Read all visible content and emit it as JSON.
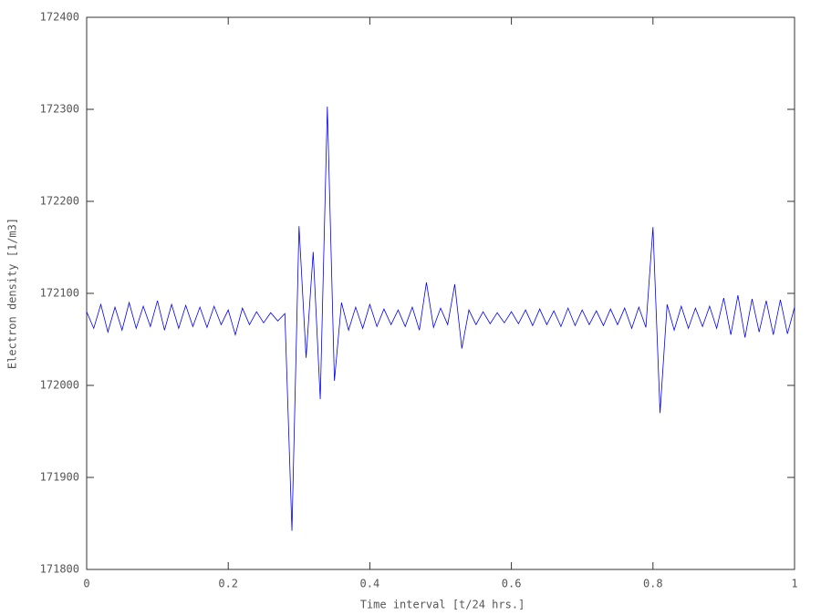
{
  "chart_data": {
    "type": "line",
    "xlabel": "Time interval [t/24 hrs.]",
    "ylabel": "Electron density [1/m3]",
    "xlim": [
      0,
      1
    ],
    "xticks": [
      0,
      0.2,
      0.4,
      0.6,
      0.8,
      1
    ],
    "ylim": [
      171800,
      172400
    ],
    "yticks": [
      171800,
      171900,
      172000,
      172100,
      172200,
      172300,
      172400
    ],
    "grid": false,
    "series": [
      {
        "color": "#0000ff",
        "x": [
          0,
          0.01,
          0.02,
          0.03,
          0.04,
          0.05,
          0.06,
          0.07,
          0.08,
          0.09,
          0.1,
          0.11,
          0.12,
          0.13,
          0.14,
          0.15,
          0.16,
          0.17,
          0.18,
          0.19,
          0.2,
          0.21,
          0.22,
          0.23,
          0.24,
          0.25,
          0.26,
          0.27,
          0.28,
          0.29,
          0.3,
          0.31,
          0.32,
          0.33,
          0.34,
          0.35,
          0.36,
          0.37,
          0.38,
          0.39,
          0.4,
          0.41,
          0.42,
          0.43,
          0.44,
          0.45,
          0.46,
          0.47,
          0.48,
          0.49,
          0.5,
          0.51,
          0.52,
          0.53,
          0.54,
          0.55,
          0.56,
          0.57,
          0.58,
          0.59,
          0.6,
          0.61,
          0.62,
          0.63,
          0.64,
          0.65,
          0.66,
          0.67,
          0.68,
          0.69,
          0.7,
          0.71,
          0.72,
          0.73,
          0.74,
          0.75,
          0.76,
          0.77,
          0.78,
          0.79,
          0.8,
          0.81,
          0.82,
          0.83,
          0.84,
          0.85,
          0.86,
          0.87,
          0.88,
          0.89,
          0.9,
          0.91,
          0.92,
          0.93,
          0.94,
          0.95,
          0.96,
          0.97,
          0.98,
          0.99,
          1
        ],
        "values": [
          172080,
          172062,
          172088,
          172058,
          172085,
          172060,
          172090,
          172062,
          172086,
          172064,
          172092,
          172060,
          172088,
          172062,
          172087,
          172064,
          172085,
          172063,
          172086,
          172066,
          172082,
          172055,
          172084,
          172066,
          172080,
          172068,
          172079,
          172070,
          172078,
          171842,
          172173,
          172030,
          172145,
          171985,
          172303,
          172005,
          172090,
          172060,
          172085,
          172062,
          172088,
          172064,
          172083,
          172066,
          172082,
          172064,
          172085,
          172060,
          172112,
          172063,
          172084,
          172066,
          172110,
          172040,
          172082,
          172066,
          172080,
          172067,
          172079,
          172068,
          172080,
          172067,
          172082,
          172065,
          172083,
          172066,
          172081,
          172064,
          172084,
          172065,
          172082,
          172066,
          172081,
          172065,
          172083,
          172066,
          172084,
          172062,
          172085,
          172063,
          172172,
          171970,
          172088,
          172060,
          172086,
          172062,
          172084,
          172064,
          172086,
          172062,
          172095,
          172055,
          172098,
          172052,
          172094,
          172058,
          172092,
          172055,
          172093,
          172056,
          172085
        ]
      }
    ]
  }
}
